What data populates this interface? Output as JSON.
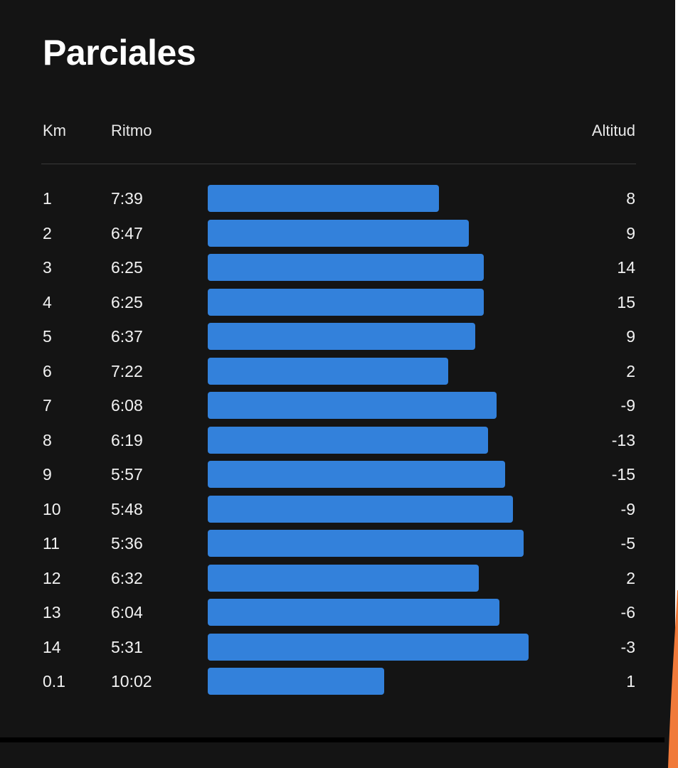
{
  "title": "Parciales",
  "columns": {
    "km": "Km",
    "pace": "Ritmo",
    "altitude": "Altitud"
  },
  "bar_color": "#3381db",
  "background_color": "#141414",
  "chart_data": {
    "type": "bar",
    "orientation": "horizontal",
    "categories": [
      "1",
      "2",
      "3",
      "4",
      "5",
      "6",
      "7",
      "8",
      "9",
      "10",
      "11",
      "12",
      "13",
      "14",
      "0.1"
    ],
    "series": [
      {
        "values": [
          "7:39",
          "6:47",
          "6:25",
          "6:25",
          "6:37",
          "7:22",
          "6:08",
          "6:19",
          "5:57",
          "5:48",
          "5:36",
          "6:32",
          "6:04",
          "5:31",
          "10:02"
        ]
      }
    ],
    "altitude": [
      "8",
      "9",
      "14",
      "15",
      "9",
      "2",
      "-9",
      "-13",
      "-15",
      "-9",
      "-5",
      "2",
      "-6",
      "-3",
      "1"
    ]
  }
}
